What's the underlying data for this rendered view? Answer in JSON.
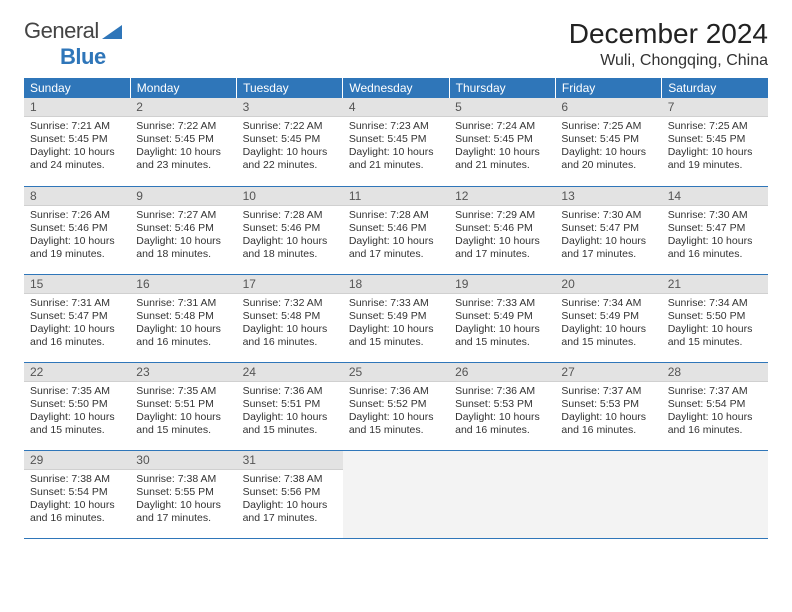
{
  "brand": {
    "general": "General",
    "blue": "Blue"
  },
  "title": "December 2024",
  "location": "Wuli, Chongqing, China",
  "colors": {
    "header_bg": "#2f76b9",
    "header_text": "#ffffff",
    "daynum_bg": "#e3e3e3",
    "rule": "#2f76b9",
    "text": "#333333",
    "bg": "#ffffff"
  },
  "weekdays": [
    "Sunday",
    "Monday",
    "Tuesday",
    "Wednesday",
    "Thursday",
    "Friday",
    "Saturday"
  ],
  "weeks": [
    [
      {
        "n": "1",
        "sr": "7:21 AM",
        "ss": "5:45 PM",
        "dl": "10 hours and 24 minutes."
      },
      {
        "n": "2",
        "sr": "7:22 AM",
        "ss": "5:45 PM",
        "dl": "10 hours and 23 minutes."
      },
      {
        "n": "3",
        "sr": "7:22 AM",
        "ss": "5:45 PM",
        "dl": "10 hours and 22 minutes."
      },
      {
        "n": "4",
        "sr": "7:23 AM",
        "ss": "5:45 PM",
        "dl": "10 hours and 21 minutes."
      },
      {
        "n": "5",
        "sr": "7:24 AM",
        "ss": "5:45 PM",
        "dl": "10 hours and 21 minutes."
      },
      {
        "n": "6",
        "sr": "7:25 AM",
        "ss": "5:45 PM",
        "dl": "10 hours and 20 minutes."
      },
      {
        "n": "7",
        "sr": "7:25 AM",
        "ss": "5:45 PM",
        "dl": "10 hours and 19 minutes."
      }
    ],
    [
      {
        "n": "8",
        "sr": "7:26 AM",
        "ss": "5:46 PM",
        "dl": "10 hours and 19 minutes."
      },
      {
        "n": "9",
        "sr": "7:27 AM",
        "ss": "5:46 PM",
        "dl": "10 hours and 18 minutes."
      },
      {
        "n": "10",
        "sr": "7:28 AM",
        "ss": "5:46 PM",
        "dl": "10 hours and 18 minutes."
      },
      {
        "n": "11",
        "sr": "7:28 AM",
        "ss": "5:46 PM",
        "dl": "10 hours and 17 minutes."
      },
      {
        "n": "12",
        "sr": "7:29 AM",
        "ss": "5:46 PM",
        "dl": "10 hours and 17 minutes."
      },
      {
        "n": "13",
        "sr": "7:30 AM",
        "ss": "5:47 PM",
        "dl": "10 hours and 17 minutes."
      },
      {
        "n": "14",
        "sr": "7:30 AM",
        "ss": "5:47 PM",
        "dl": "10 hours and 16 minutes."
      }
    ],
    [
      {
        "n": "15",
        "sr": "7:31 AM",
        "ss": "5:47 PM",
        "dl": "10 hours and 16 minutes."
      },
      {
        "n": "16",
        "sr": "7:31 AM",
        "ss": "5:48 PM",
        "dl": "10 hours and 16 minutes."
      },
      {
        "n": "17",
        "sr": "7:32 AM",
        "ss": "5:48 PM",
        "dl": "10 hours and 16 minutes."
      },
      {
        "n": "18",
        "sr": "7:33 AM",
        "ss": "5:49 PM",
        "dl": "10 hours and 15 minutes."
      },
      {
        "n": "19",
        "sr": "7:33 AM",
        "ss": "5:49 PM",
        "dl": "10 hours and 15 minutes."
      },
      {
        "n": "20",
        "sr": "7:34 AM",
        "ss": "5:49 PM",
        "dl": "10 hours and 15 minutes."
      },
      {
        "n": "21",
        "sr": "7:34 AM",
        "ss": "5:50 PM",
        "dl": "10 hours and 15 minutes."
      }
    ],
    [
      {
        "n": "22",
        "sr": "7:35 AM",
        "ss": "5:50 PM",
        "dl": "10 hours and 15 minutes."
      },
      {
        "n": "23",
        "sr": "7:35 AM",
        "ss": "5:51 PM",
        "dl": "10 hours and 15 minutes."
      },
      {
        "n": "24",
        "sr": "7:36 AM",
        "ss": "5:51 PM",
        "dl": "10 hours and 15 minutes."
      },
      {
        "n": "25",
        "sr": "7:36 AM",
        "ss": "5:52 PM",
        "dl": "10 hours and 15 minutes."
      },
      {
        "n": "26",
        "sr": "7:36 AM",
        "ss": "5:53 PM",
        "dl": "10 hours and 16 minutes."
      },
      {
        "n": "27",
        "sr": "7:37 AM",
        "ss": "5:53 PM",
        "dl": "10 hours and 16 minutes."
      },
      {
        "n": "28",
        "sr": "7:37 AM",
        "ss": "5:54 PM",
        "dl": "10 hours and 16 minutes."
      }
    ],
    [
      {
        "n": "29",
        "sr": "7:38 AM",
        "ss": "5:54 PM",
        "dl": "10 hours and 16 minutes."
      },
      {
        "n": "30",
        "sr": "7:38 AM",
        "ss": "5:55 PM",
        "dl": "10 hours and 17 minutes."
      },
      {
        "n": "31",
        "sr": "7:38 AM",
        "ss": "5:56 PM",
        "dl": "10 hours and 17 minutes."
      },
      null,
      null,
      null,
      null
    ]
  ],
  "labels": {
    "sunrise": "Sunrise: ",
    "sunset": "Sunset: ",
    "daylight": "Daylight: "
  }
}
